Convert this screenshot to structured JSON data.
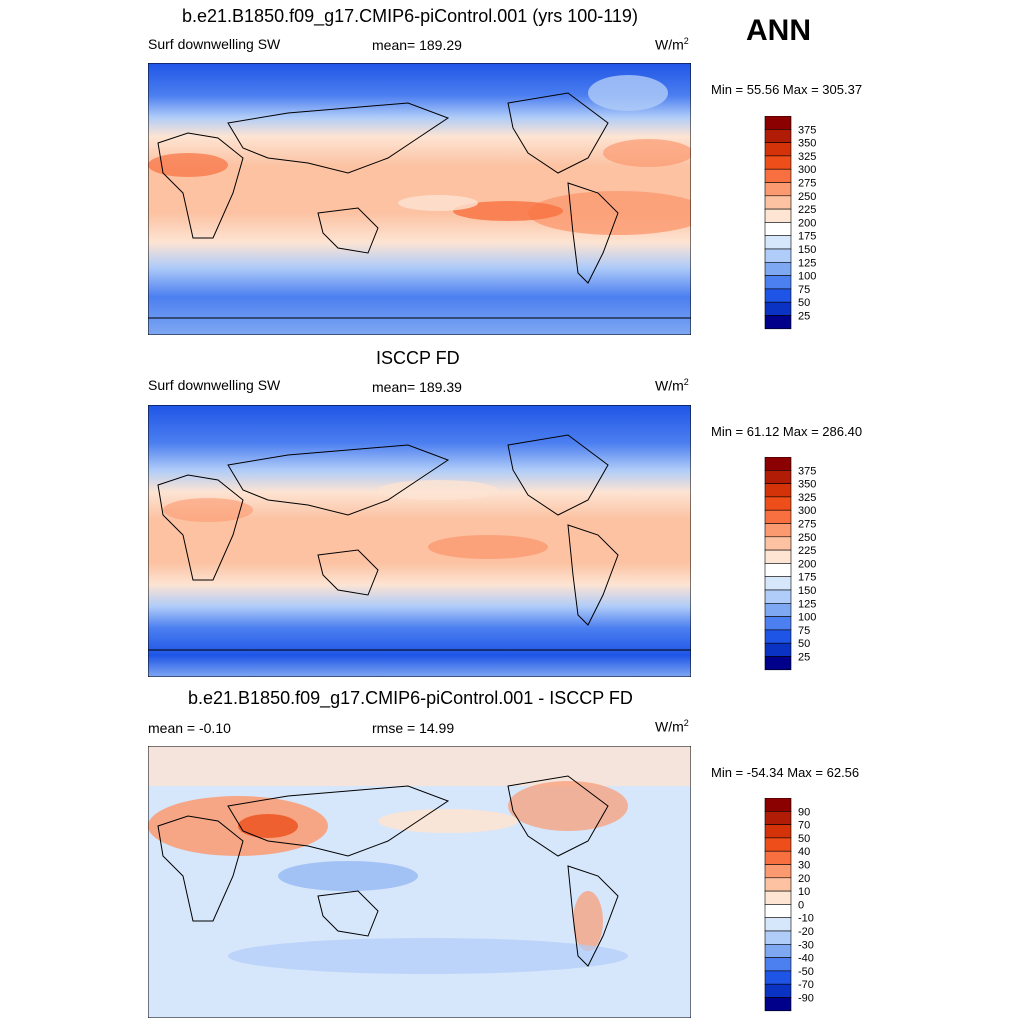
{
  "season": "ANN",
  "panels": [
    {
      "title": "b.e21.B1850.f09_g17.CMIP6-piControl.001 (yrs 100-119)",
      "left_label": "Surf downwelling SW",
      "center_label": "mean= 189.29",
      "units": "W/m",
      "units_sup": "2",
      "minmax": "Min =  55.56 Max = 305.37"
    },
    {
      "title": "ISCCP FD",
      "left_label": "Surf downwelling SW",
      "center_label": "mean= 189.39",
      "units": "W/m",
      "units_sup": "2",
      "minmax": "Min =  61.12 Max = 286.40"
    },
    {
      "title": "b.e21.B1850.f09_g17.CMIP6-piControl.001 - ISCCP FD",
      "left_label": "mean =  -0.10",
      "center_label": "rmse =  14.99",
      "units": "W/m",
      "units_sup": "2",
      "minmax": "Min = -54.34 Max =  62.56"
    }
  ],
  "chart_data": [
    {
      "type": "heatmap",
      "title": "b.e21.B1850.f09_g17.CMIP6-piControl.001 (yrs 100-119)",
      "variable": "Surf downwelling SW",
      "units": "W/m2",
      "mean": 189.29,
      "min": 55.56,
      "max": 305.37,
      "colorbar": {
        "levels": [
          375,
          350,
          325,
          300,
          275,
          250,
          225,
          200,
          175,
          150,
          125,
          100,
          75,
          50,
          25
        ],
        "colors": [
          "#8b0000",
          "#b01c05",
          "#d4330a",
          "#ee4f1a",
          "#f87040",
          "#fb9a70",
          "#fcc2a2",
          "#fde4d3",
          "#ffffff",
          "#d6e6fb",
          "#b0ccf8",
          "#7fa8f2",
          "#4c7ff0",
          "#1f55e6",
          "#0a33c4",
          "#00008b"
        ]
      }
    },
    {
      "type": "heatmap",
      "title": "ISCCP FD",
      "variable": "Surf downwelling SW",
      "units": "W/m2",
      "mean": 189.39,
      "min": 61.12,
      "max": 286.4,
      "colorbar": {
        "levels": [
          375,
          350,
          325,
          300,
          275,
          250,
          225,
          200,
          175,
          150,
          125,
          100,
          75,
          50,
          25
        ],
        "colors": [
          "#8b0000",
          "#b01c05",
          "#d4330a",
          "#ee4f1a",
          "#f87040",
          "#fb9a70",
          "#fcc2a2",
          "#fde4d3",
          "#ffffff",
          "#d6e6fb",
          "#b0ccf8",
          "#7fa8f2",
          "#4c7ff0",
          "#1f55e6",
          "#0a33c4",
          "#00008b"
        ]
      }
    },
    {
      "type": "heatmap",
      "title": "b.e21.B1850.f09_g17.CMIP6-piControl.001 - ISCCP FD",
      "units": "W/m2",
      "mean": -0.1,
      "rmse": 14.99,
      "min": -54.34,
      "max": 62.56,
      "colorbar": {
        "levels": [
          90,
          70,
          50,
          40,
          30,
          20,
          10,
          0,
          -10,
          -20,
          -30,
          -40,
          -50,
          -70,
          -90
        ],
        "colors": [
          "#8b0000",
          "#b01c05",
          "#d4330a",
          "#ee4f1a",
          "#f87040",
          "#fb9a70",
          "#fcc2a2",
          "#fde4d3",
          "#ffffff",
          "#d6e6fb",
          "#b0ccf8",
          "#7fa8f2",
          "#4c7ff0",
          "#1f55e6",
          "#0a33c4",
          "#00008b"
        ]
      }
    }
  ]
}
